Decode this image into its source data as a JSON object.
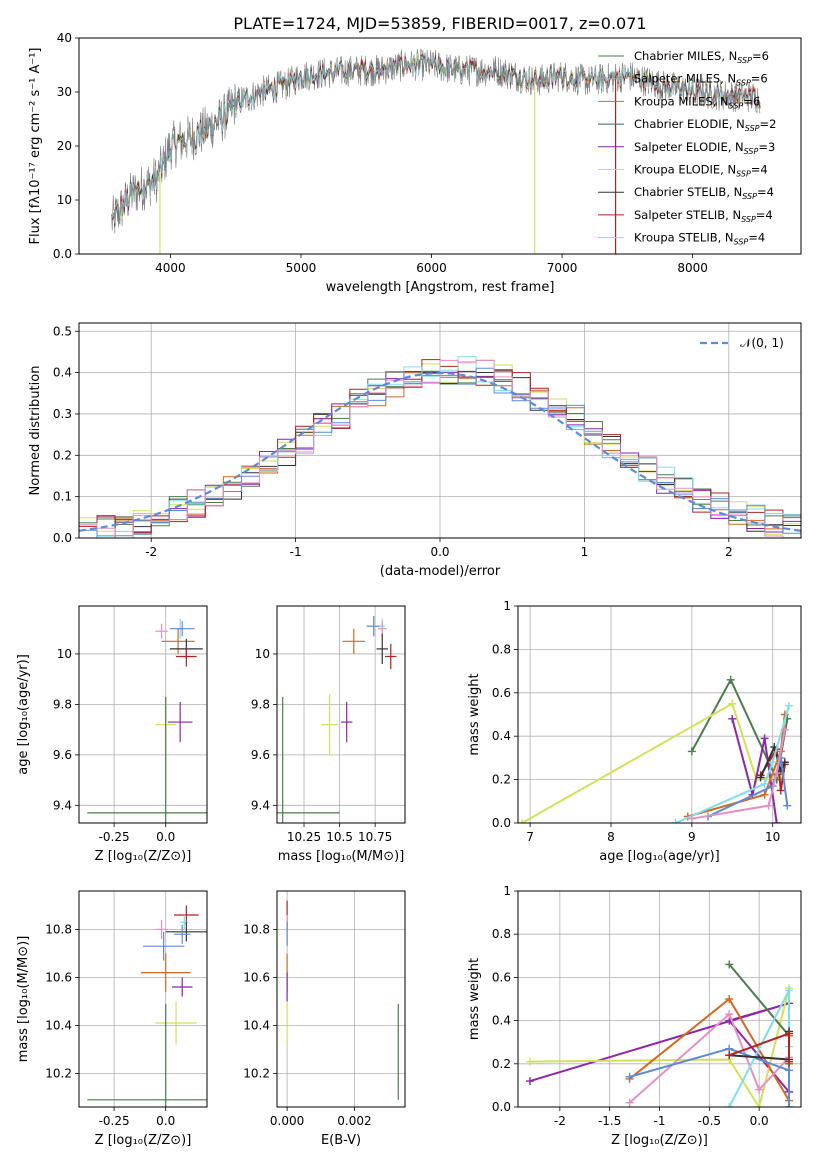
{
  "title": "PLATE=1724, MJD=53859, FIBERID=0017, z=0.071",
  "colors": {
    "chabrier_miles": "#4c7c4c",
    "salpeter_miles": "#a9a9a9",
    "kroupa_miles": "#d2691e",
    "chabrier_elodie": "#2f6f4f",
    "salpeter_elodie": "#8e24aa",
    "kroupa_elodie": "#d4e157",
    "chabrier_stelib": "#333333",
    "salpeter_stelib": "#b22222",
    "kroupa_stelib": "#80deea",
    "extra_blue": "#5b8bd9",
    "extra_pink": "#e58fc4",
    "normal_curve": "#5b8bd9"
  },
  "chart_data": [
    {
      "id": "spectrum",
      "type": "line",
      "xlabel": "wavelength [Angstrom, rest frame]",
      "ylabel": "Flux [fλ10⁻¹⁷ erg cm⁻² s⁻¹ A⁻¹]",
      "xlim": [
        3300,
        8830
      ],
      "ylim": [
        0,
        40
      ],
      "xticks": [
        4000,
        5000,
        6000,
        7000,
        8000
      ],
      "yticks": [
        0,
        10,
        20,
        30,
        40
      ],
      "grid": false,
      "legend_position": "top-right",
      "continuum": {
        "x": [
          3550,
          3700,
          3900,
          4000,
          4200,
          4400,
          4500,
          4700,
          4900,
          5000,
          5200,
          5400,
          5600,
          5800,
          6000,
          6200,
          6500,
          6800,
          7000,
          7200,
          7500,
          7800,
          8000,
          8200,
          8500
        ],
        "y": [
          6,
          11,
          14,
          20,
          22,
          25,
          28,
          30,
          31.5,
          33,
          33.5,
          34,
          34,
          35,
          35,
          34,
          34,
          32,
          33,
          32,
          33,
          31,
          30,
          29.5,
          29
        ]
      },
      "series": [
        {
          "name": "Chabrier MILES, N$_{SSP}$=6",
          "color": "#4c7c4c"
        },
        {
          "name": "Salpeter MILES, N$_{SSP}$=6",
          "color": "#a9a9a9"
        },
        {
          "name": "Kroupa MILES, N$_{SSP}$=6",
          "color": "#d2691e"
        },
        {
          "name": "Chabrier ELODIE, N$_{SSP}$=2",
          "color": "#2f6f4f"
        },
        {
          "name": "Salpeter ELODIE, N$_{SSP}$=3",
          "color": "#8e24aa"
        },
        {
          "name": "Kroupa ELODIE, N$_{SSP}$=4",
          "color": "#d4e157"
        },
        {
          "name": "Chabrier STELIB, N$_{SSP}$=4",
          "color": "#333333"
        },
        {
          "name": "Salpeter STELIB, N$_{SSP}$=4",
          "color": "#b22222"
        },
        {
          "name": "Kroupa STELIB, N$_{SSP}$=4",
          "color": "#80deea"
        }
      ],
      "spikes": [
        {
          "x": 3920,
          "y": 0,
          "color": "#d4e157"
        },
        {
          "x": 6790,
          "y": 0,
          "color": "#d4e157"
        },
        {
          "x": 7410,
          "y": 0,
          "color": "#b22222"
        }
      ]
    },
    {
      "id": "residuals",
      "type": "line",
      "xlabel": "(data-model)/error",
      "ylabel": "Normed distribution",
      "xlim": [
        -2.5,
        2.5
      ],
      "ylim": [
        0,
        0.52
      ],
      "xticks": [
        -2,
        -1,
        0,
        1,
        2
      ],
      "yticks": [
        0.0,
        0.1,
        0.2,
        0.3,
        0.4,
        0.5
      ],
      "grid": true,
      "legend_position": "top-right",
      "legend_label": "𝒩(0, 1)",
      "bins": 40,
      "step_colors": [
        "#4c7c4c",
        "#d2691e",
        "#d4e157",
        "#8e24aa",
        "#333333",
        "#b22222",
        "#80deea",
        "#5b8bd9",
        "#e58fc4"
      ]
    },
    {
      "id": "z_age",
      "type": "scatter",
      "xlabel": "Z [log₁₀(Z/Z⊙)]",
      "ylabel": "age  [log₁₀(age/yr)]",
      "xlim": [
        -0.42,
        0.2
      ],
      "ylim": [
        9.33,
        10.19
      ],
      "xticks": [
        -0.25,
        0.0
      ],
      "yticks": [
        9.4,
        9.6,
        9.8,
        10.0
      ],
      "grid": true,
      "points": [
        {
          "x": 0.07,
          "y": 10.1,
          "xerr": 0.02,
          "yerr": 0.04,
          "color": "#80deea"
        },
        {
          "x": 0.08,
          "y": 10.1,
          "xerr": 0.06,
          "yerr": 0.03,
          "color": "#5b8bd9"
        },
        {
          "x": -0.02,
          "y": 10.09,
          "xerr": 0.03,
          "yerr": 0.03,
          "color": "#e58fc4"
        },
        {
          "x": 0.06,
          "y": 10.05,
          "xerr": 0.08,
          "yerr": 0.05,
          "color": "#d2691e"
        },
        {
          "x": 0.1,
          "y": 10.02,
          "xerr": 0.08,
          "yerr": 0.04,
          "color": "#333333"
        },
        {
          "x": 0.1,
          "y": 9.99,
          "xerr": 0.05,
          "yerr": 0.04,
          "color": "#b22222"
        },
        {
          "x": 0.07,
          "y": 9.73,
          "xerr": 0.06,
          "yerr": 0.08,
          "color": "#8e24aa"
        },
        {
          "x": 0.0,
          "y": 9.72,
          "xerr": 0.05,
          "yerr": 0.12,
          "color": "#d4e157"
        },
        {
          "x": 0.0,
          "y": 9.37,
          "xerr": 0.38,
          "yerr": 0.46,
          "color": "#4c7c4c"
        }
      ]
    },
    {
      "id": "mass_age",
      "type": "scatter",
      "xlabel": "mass [log₁₀(M/M⊙)]",
      "ylabel": "",
      "xlim": [
        10.06,
        10.96
      ],
      "ylim": [
        9.33,
        10.19
      ],
      "xticks": [
        10.25,
        10.5,
        10.75
      ],
      "yticks": [
        9.4,
        9.6,
        9.8,
        10.0
      ],
      "grid": true,
      "points": [
        {
          "x": 10.74,
          "y": 10.11,
          "xerr": 0.05,
          "yerr": 0.04,
          "color": "#5b8bd9"
        },
        {
          "x": 10.8,
          "y": 10.11,
          "xerr": 0.02,
          "yerr": 0.03,
          "color": "#80deea"
        },
        {
          "x": 10.8,
          "y": 10.1,
          "xerr": 0.03,
          "yerr": 0.03,
          "color": "#e58fc4"
        },
        {
          "x": 10.6,
          "y": 10.05,
          "xerr": 0.08,
          "yerr": 0.05,
          "color": "#d2691e"
        },
        {
          "x": 10.8,
          "y": 10.02,
          "xerr": 0.04,
          "yerr": 0.06,
          "color": "#333333"
        },
        {
          "x": 10.86,
          "y": 9.99,
          "xerr": 0.04,
          "yerr": 0.05,
          "color": "#b22222"
        },
        {
          "x": 10.55,
          "y": 9.73,
          "xerr": 0.04,
          "yerr": 0.08,
          "color": "#8e24aa"
        },
        {
          "x": 10.43,
          "y": 9.72,
          "xerr": 0.06,
          "yerr": 0.12,
          "color": "#d4e157"
        },
        {
          "x": 10.1,
          "y": 9.37,
          "xerr": 0.4,
          "yerr": 0.46,
          "color": "#4c7c4c"
        }
      ]
    },
    {
      "id": "age_weight",
      "type": "line",
      "xlabel": "age  [log₁₀(age/yr)]",
      "ylabel": "mass weight",
      "xlim": [
        6.85,
        10.35
      ],
      "ylim": [
        0,
        1.0
      ],
      "xticks": [
        7,
        8,
        9,
        10
      ],
      "yticks": [
        0.0,
        0.2,
        0.4,
        0.6,
        0.8,
        1.0
      ],
      "grid": true,
      "series": [
        {
          "color": "#4c7c4c",
          "x": [
            9.0,
            9.48,
            10.05,
            10.18
          ],
          "y": [
            0.33,
            0.66,
            0.2,
            0.48
          ]
        },
        {
          "color": "#d4e157",
          "x": [
            6.9,
            9.5,
            9.8,
            10.1
          ],
          "y": [
            0.0,
            0.55,
            0.2,
            0.22
          ]
        },
        {
          "color": "#8e24aa",
          "x": [
            9.5,
            9.75,
            9.9,
            10.05
          ],
          "y": [
            0.48,
            0.13,
            0.39,
            0.0
          ]
        },
        {
          "color": "#b22222",
          "x": [
            9.85,
            10.05,
            10.1,
            10.15
          ],
          "y": [
            0.22,
            0.34,
            0.15,
            0.27
          ]
        },
        {
          "color": "#333333",
          "x": [
            9.85,
            10.02,
            10.1,
            10.15
          ],
          "y": [
            0.21,
            0.35,
            0.24,
            0.28
          ]
        },
        {
          "color": "#d2691e",
          "x": [
            8.95,
            9.9,
            10.1,
            10.15
          ],
          "y": [
            0.03,
            0.13,
            0.33,
            0.5
          ]
        },
        {
          "color": "#80deea",
          "x": [
            8.8,
            9.9,
            10.0,
            10.2
          ],
          "y": [
            0.0,
            0.18,
            0.28,
            0.54
          ]
        },
        {
          "color": "#5b8bd9",
          "x": [
            9.2,
            10.0,
            10.1,
            10.18
          ],
          "y": [
            0.03,
            0.17,
            0.3,
            0.08
          ]
        },
        {
          "color": "#e58fc4",
          "x": [
            9.0,
            9.95,
            10.05,
            10.15
          ],
          "y": [
            0.02,
            0.08,
            0.23,
            0.43
          ]
        }
      ]
    },
    {
      "id": "z_mass",
      "type": "scatter",
      "xlabel": "Z [log₁₀(Z/Z⊙)]",
      "ylabel": "mass [log₁₀(M/M⊙)]",
      "xlim": [
        -0.42,
        0.2
      ],
      "ylim": [
        10.06,
        10.96
      ],
      "xticks": [
        -0.25,
        0.0
      ],
      "yticks": [
        10.2,
        10.4,
        10.6,
        10.8
      ],
      "grid": true,
      "points": [
        {
          "x": 0.1,
          "y": 10.86,
          "xerr": 0.06,
          "yerr": 0.04,
          "color": "#b22222"
        },
        {
          "x": 0.09,
          "y": 10.83,
          "xerr": 0.02,
          "yerr": 0.03,
          "color": "#80deea"
        },
        {
          "x": -0.02,
          "y": 10.8,
          "xerr": 0.03,
          "yerr": 0.04,
          "color": "#e58fc4"
        },
        {
          "x": 0.1,
          "y": 10.79,
          "xerr": 0.1,
          "yerr": 0.04,
          "color": "#333333"
        },
        {
          "x": 0.08,
          "y": 10.78,
          "xerr": 0.04,
          "yerr": 0.04,
          "color": "#5b8bd9"
        },
        {
          "x": -0.01,
          "y": 10.73,
          "xerr": 0.1,
          "yerr": 0.06,
          "color": "#5b8bd9"
        },
        {
          "x": 0.0,
          "y": 10.62,
          "xerr": 0.12,
          "yerr": 0.08,
          "color": "#d2691e"
        },
        {
          "x": 0.08,
          "y": 10.56,
          "xerr": 0.05,
          "yerr": 0.04,
          "color": "#8e24aa"
        },
        {
          "x": 0.05,
          "y": 10.41,
          "xerr": 0.1,
          "yerr": 0.09,
          "color": "#d4e157"
        },
        {
          "x": 0.0,
          "y": 10.09,
          "xerr": 0.38,
          "yerr": 0.4,
          "color": "#4c7c4c"
        }
      ]
    },
    {
      "id": "ebv_mass",
      "type": "scatter",
      "xlabel": "E(B-V)",
      "ylabel": "",
      "xlim": [
        -0.0003,
        0.0035
      ],
      "ylim": [
        10.06,
        10.96
      ],
      "xticks": [
        0.0,
        0.002
      ],
      "xtick_labels": [
        "0.000",
        "0.002"
      ],
      "yticks": [
        10.2,
        10.4,
        10.6,
        10.8
      ],
      "grid": true,
      "points": [
        {
          "x": 0.0,
          "y": 10.86,
          "xerr": 0.0,
          "yerr": 0.06,
          "color": "#b22222"
        },
        {
          "x": 0.0,
          "y": 10.8,
          "xerr": 0.0,
          "yerr": 0.06,
          "color": "#e58fc4"
        },
        {
          "x": 0.0,
          "y": 10.78,
          "xerr": 0.0,
          "yerr": 0.05,
          "color": "#5b8bd9"
        },
        {
          "x": 0.0,
          "y": 10.62,
          "xerr": 0.0,
          "yerr": 0.08,
          "color": "#d2691e"
        },
        {
          "x": 0.0,
          "y": 10.56,
          "xerr": 0.0,
          "yerr": 0.06,
          "color": "#8e24aa"
        },
        {
          "x": 0.0,
          "y": 10.41,
          "xerr": 0.0,
          "yerr": 0.09,
          "color": "#d4e157"
        },
        {
          "x": 0.0033,
          "y": 10.29,
          "xerr": 0.0,
          "yerr": 0.2,
          "color": "#4c7c4c"
        }
      ]
    },
    {
      "id": "z_weight",
      "type": "line",
      "xlabel": "Z [log₁₀(Z/Z⊙)]",
      "ylabel": "mass weight",
      "xlim": [
        -2.42,
        0.42
      ],
      "ylim": [
        0,
        1.0
      ],
      "xticks": [
        -2.0,
        -1.5,
        -1.0,
        -0.5,
        0.0
      ],
      "yticks": [
        0.0,
        0.2,
        0.4,
        0.6,
        0.8,
        1.0
      ],
      "grid": true,
      "series": [
        {
          "color": "#8e24aa",
          "x": [
            -2.3,
            0.3,
            -0.3,
            0.3
          ],
          "y": [
            0.12,
            0.48,
            0.4,
            0.07
          ]
        },
        {
          "color": "#d4e157",
          "x": [
            -2.3,
            -0.3,
            0.0,
            0.3
          ],
          "y": [
            0.21,
            0.22,
            0.0,
            0.55
          ]
        },
        {
          "color": "#4c7c4c",
          "x": [
            -0.3,
            0.3,
            0.3
          ],
          "y": [
            0.66,
            0.33,
            0.2
          ]
        },
        {
          "color": "#d2691e",
          "x": [
            -1.3,
            -0.3,
            0.3,
            0.3
          ],
          "y": [
            0.13,
            0.5,
            0.03,
            0.33
          ]
        },
        {
          "color": "#e58fc4",
          "x": [
            -1.3,
            -0.3,
            0.0,
            0.3
          ],
          "y": [
            0.02,
            0.43,
            0.08,
            0.23
          ]
        },
        {
          "color": "#5b8bd9",
          "x": [
            -1.3,
            -0.3,
            0.3,
            0.3
          ],
          "y": [
            0.14,
            0.27,
            0.17,
            0.0
          ]
        },
        {
          "color": "#80deea",
          "x": [
            -0.3,
            0.3,
            0.3
          ],
          "y": [
            0.0,
            0.54,
            0.28
          ]
        },
        {
          "color": "#333333",
          "x": [
            -0.3,
            0.3,
            0.3
          ],
          "y": [
            0.24,
            0.22,
            0.35
          ]
        },
        {
          "color": "#b22222",
          "x": [
            -0.3,
            0.3,
            0.3
          ],
          "y": [
            0.24,
            0.34,
            0.21
          ]
        }
      ]
    }
  ]
}
